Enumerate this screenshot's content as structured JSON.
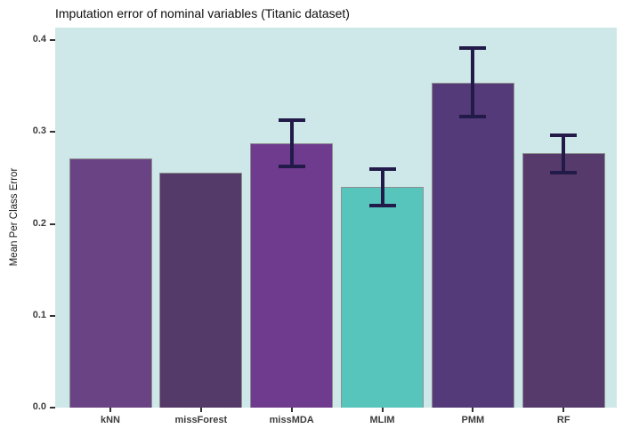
{
  "chart_data": {
    "type": "bar",
    "title": "Imputation error of nominal variables (Titanic dataset)",
    "xlabel": "",
    "ylabel": "Mean Per Class Error",
    "categories": [
      "kNN",
      "missForest",
      "missMDA",
      "MLIM",
      "PMM",
      "RF"
    ],
    "values": [
      0.271,
      0.256,
      0.288,
      0.24,
      0.354,
      0.277
    ],
    "error_low": [
      null,
      null,
      0.262,
      0.22,
      0.317,
      0.256
    ],
    "error_high": [
      null,
      null,
      0.313,
      0.26,
      0.391,
      0.296
    ],
    "y_ticks": [
      0.0,
      0.1,
      0.2,
      0.3,
      0.4
    ],
    "ylim": [
      0,
      0.4136
    ],
    "grid": false,
    "legend": false,
    "bar_colors": [
      "#6a4385",
      "#533a69",
      "#6f3b8e",
      "#58c5bd",
      "#553a79",
      "#563a6b"
    ],
    "bar_border_color": "#8f8f8f",
    "errorbar_color": "#221b49",
    "panel_background": "#cee8e9",
    "tick_color": "#333333",
    "axis_text_color": "#3d3d3d",
    "title_color": "#0d0d0d"
  }
}
